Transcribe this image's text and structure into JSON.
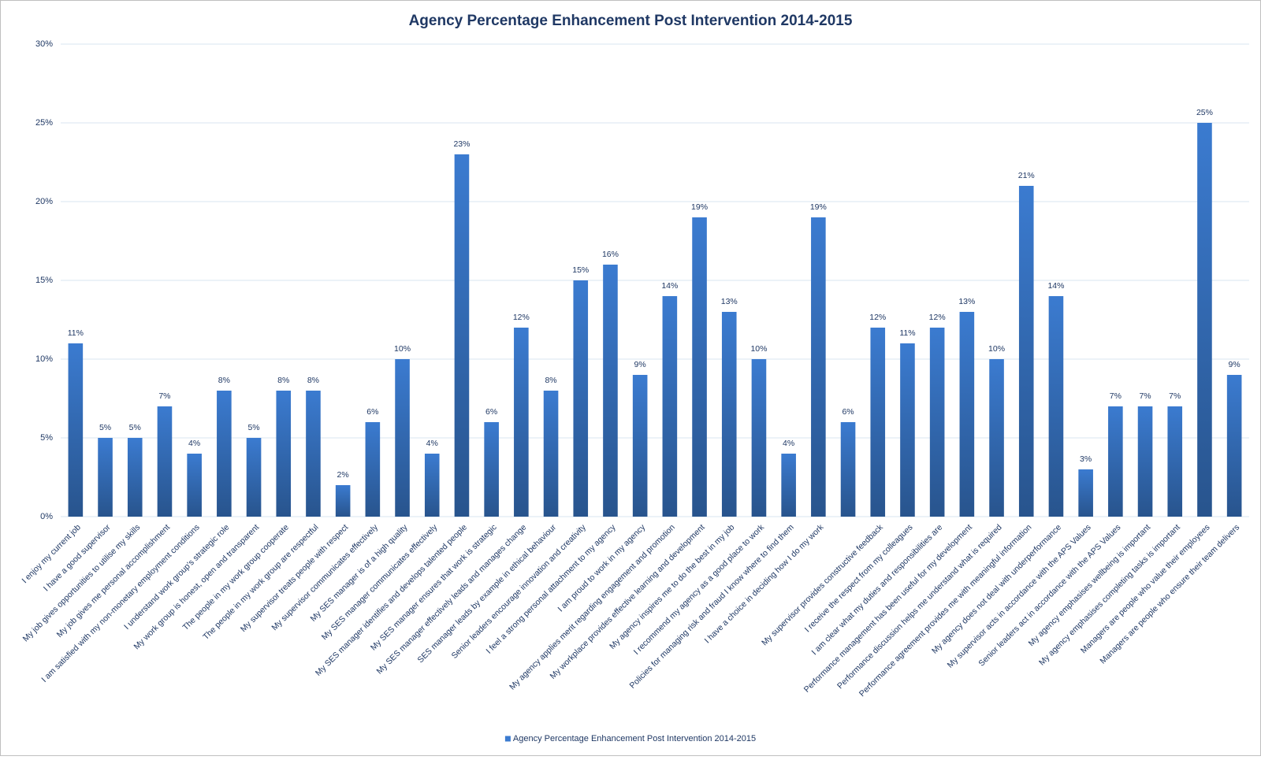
{
  "chart_data": {
    "type": "bar",
    "title": "Agency Percentage Enhancement Post Intervention 2014-2015",
    "categories": [
      "I enjoy my current job",
      "I have a good supervisor",
      "My job gives opportunities to utilise my skills",
      "My job gives me personal accomplishment",
      "I am satisfied with my non-monetary employment conditions",
      "I understand work group's strategic role",
      "My work group is honest, open and transparent",
      "The people in my work group cooperate",
      "The people in my work group are respectful",
      "My supervisor treats people with respect",
      "My supervisor communicates effectively",
      "My SES manager is of a high quality",
      "My SES manager communicates effectively",
      "My SES manager identifies and develops talented people",
      "My SES manager ensures that work is strategic",
      "My SES manager effectively leads and manages change",
      "SES manager leads by example in ethical behaviour",
      "Senior leaders encourage innovation and creativity",
      "I feel a strong personal attachment to my agency",
      "I am proud to work in my agency",
      "My agency applies merit regarding engagement and promotion",
      "My workplace provides effective learning and development",
      "My agency inspires me to do the best in my job",
      "I recommend my agency as a good place to work",
      "Policies for managing risk and fraud I know where to find them",
      "I have a choice in deciding how I do my work",
      null,
      "My supervisor provides constructive feedback",
      "I receive the respect from my colleagues",
      "I am clear what my duties and responsibilities are",
      "Performance management has been useful for my development",
      "Performance discussion helps me understand what is required",
      "Performance agreement provides me with meaningful information",
      "My agency does not deal with underperformance",
      "My supervisor acts in accordance with the APS Values",
      "Senior leaders act in accordance with the APS Values",
      "My agency emphasises wellbeing is important",
      "My agency emphasises completing tasks is important",
      "Managers are people who value their employees",
      "Managers are people who ensure their team delivers"
    ],
    "series": [
      {
        "name": "Agency Percentage Enhancement Post Intervention 2014-2015",
        "color": "#3b7bd0",
        "values": [
          11,
          5,
          5,
          7,
          4,
          8,
          5,
          8,
          8,
          2,
          6,
          10,
          4,
          23,
          6,
          12,
          8,
          15,
          16,
          9,
          14,
          19,
          13,
          10,
          4,
          19,
          6,
          12,
          11,
          12,
          13,
          10,
          21,
          14,
          3,
          7,
          7,
          7,
          25,
          9
        ],
        "value_labels": [
          "11%",
          "5%",
          "5%",
          "7%",
          "4%",
          "8%",
          "5%",
          "8%",
          "8%",
          "2%",
          "6%",
          "10%",
          "4%",
          "23%",
          "6%",
          "12%",
          "8%",
          "15%",
          "16%",
          "9%",
          "14%",
          "19%",
          "13%",
          "10%",
          "4%",
          "19%",
          "6%",
          "12%",
          "11%",
          "12%",
          "13%",
          "10%",
          "21%",
          "14%",
          "3%",
          "7%",
          "7%",
          "7%",
          "25%",
          "9%"
        ]
      }
    ],
    "ylim": [
      0,
      30
    ],
    "yticks": [
      {
        "value": 0,
        "label": "0%"
      },
      {
        "value": 5,
        "label": "5%"
      },
      {
        "value": 10,
        "label": "10%"
      },
      {
        "value": 15,
        "label": "15%"
      },
      {
        "value": 20,
        "label": "20%"
      },
      {
        "value": 25,
        "label": "25%"
      },
      {
        "value": 30,
        "label": "30%"
      }
    ],
    "grid": true,
    "legend": "bottom"
  }
}
